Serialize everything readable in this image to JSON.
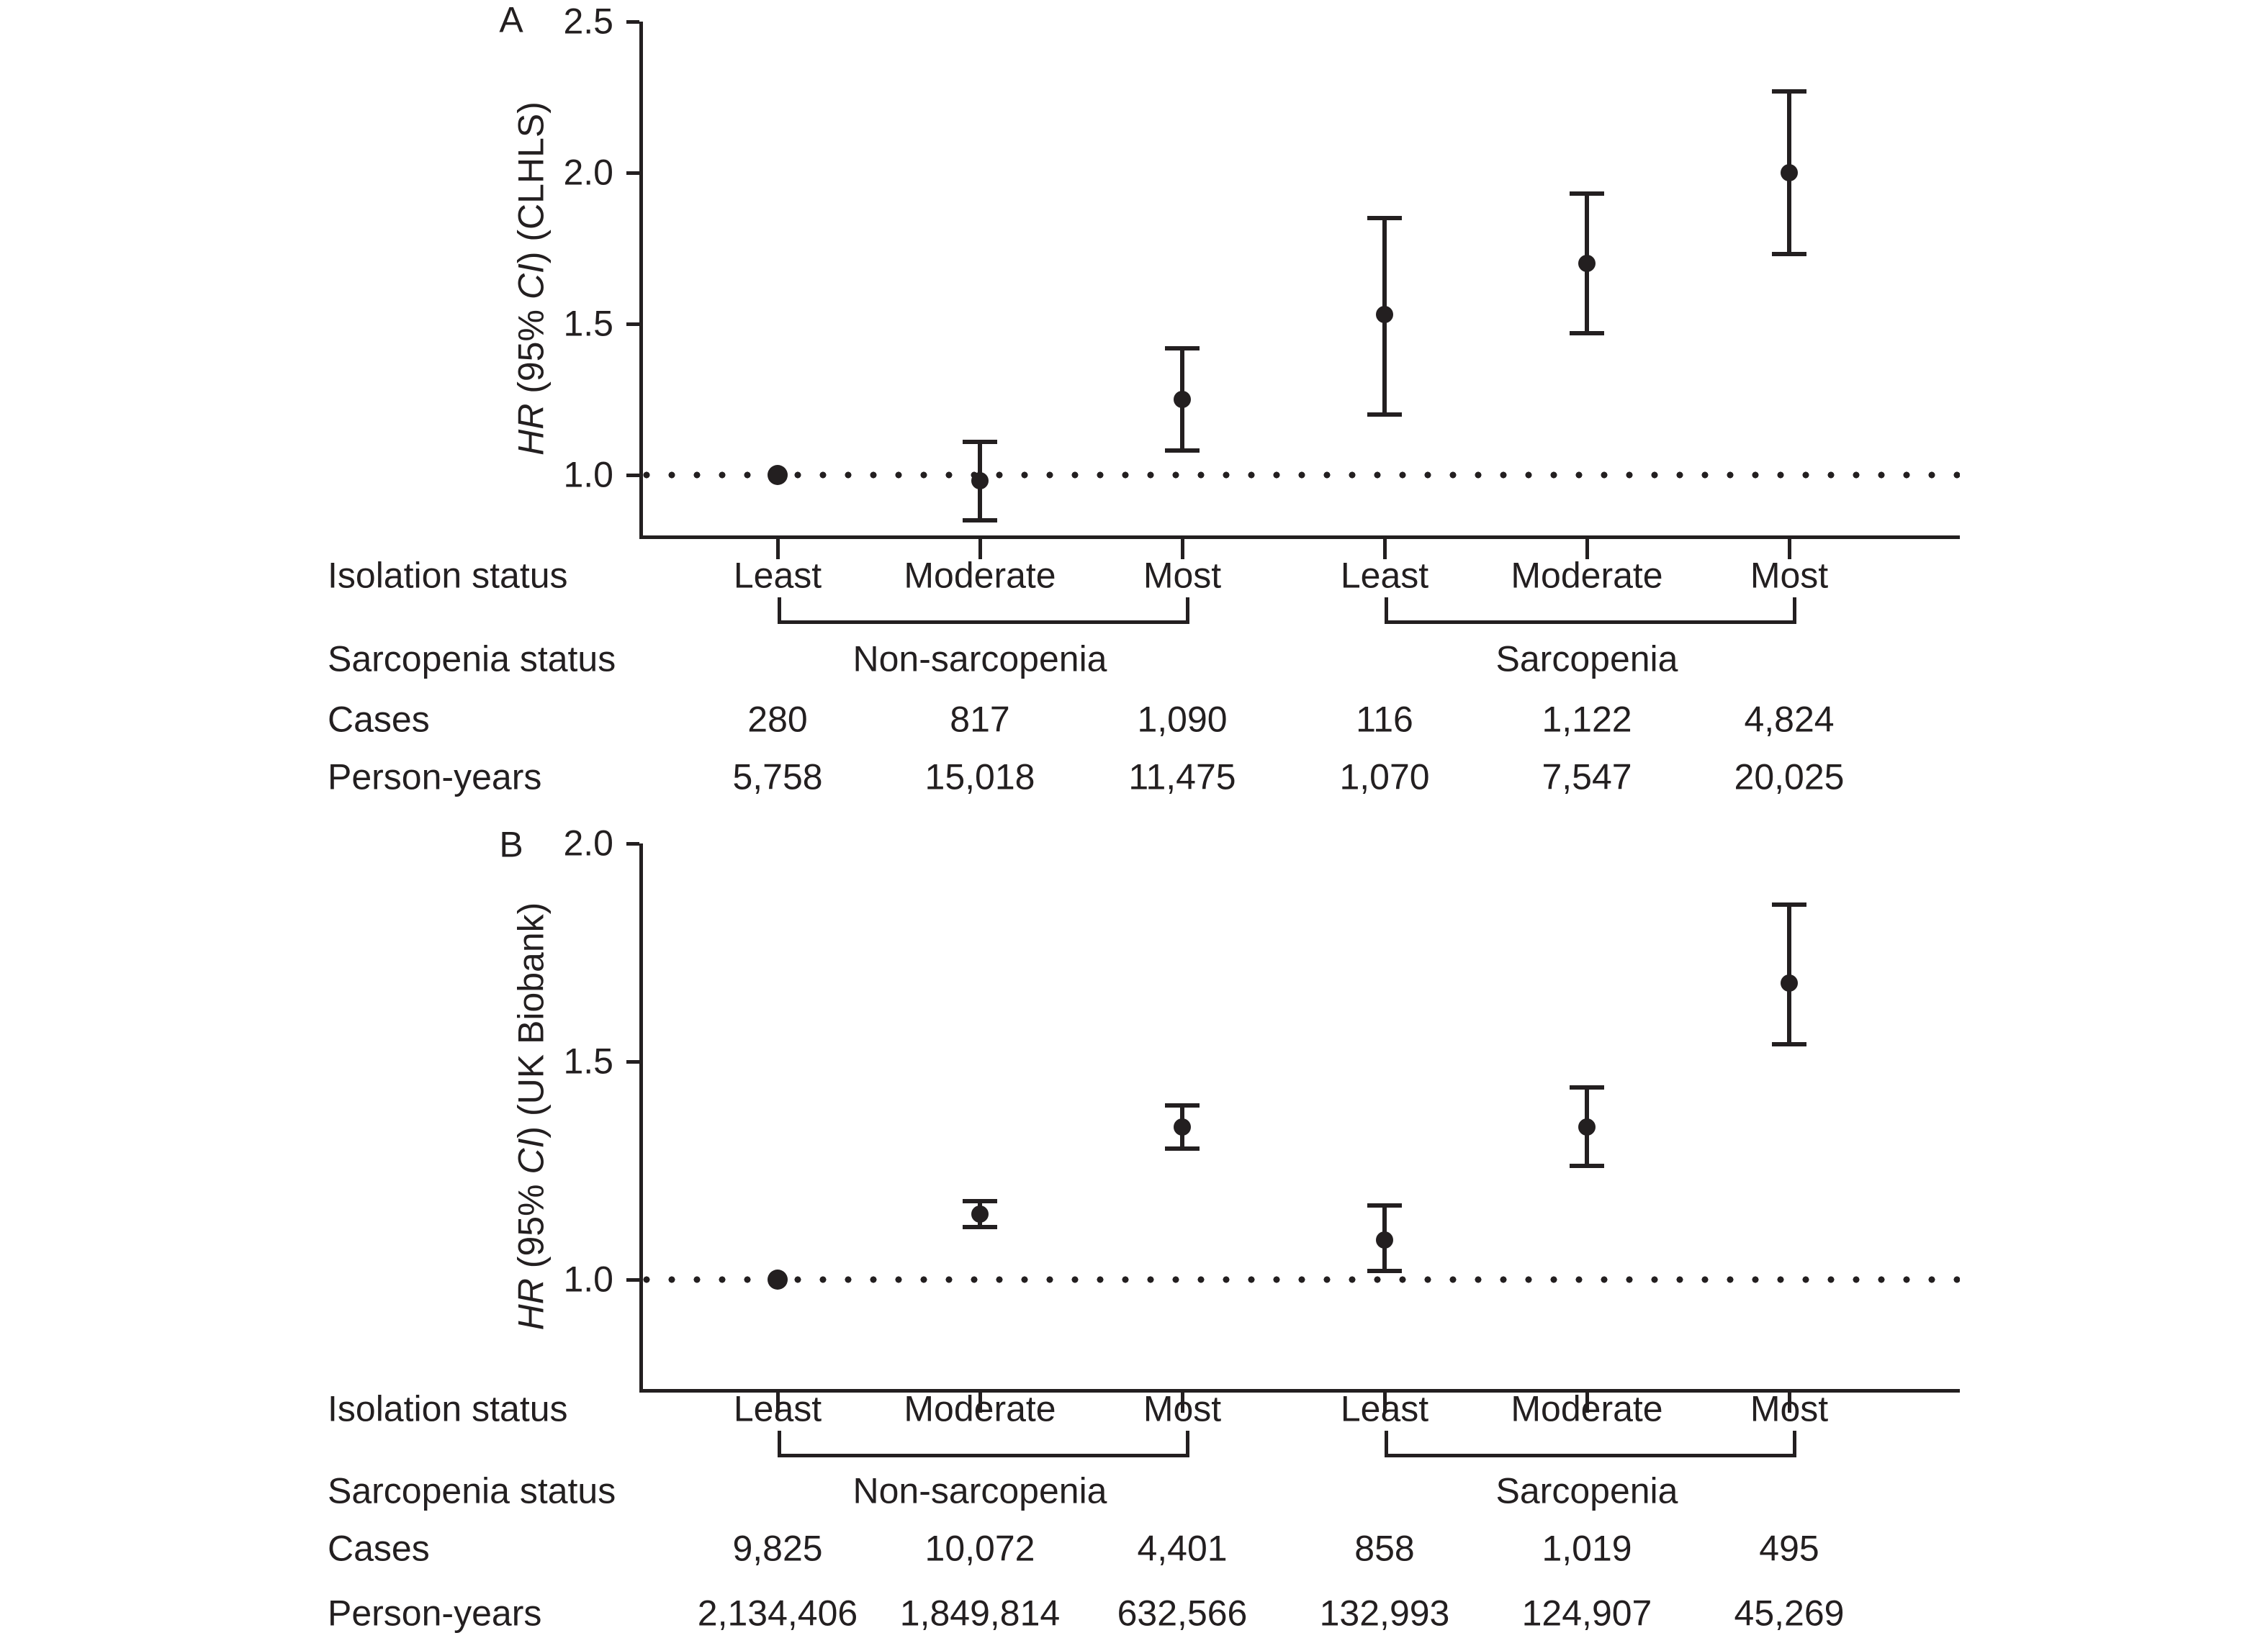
{
  "colors": {
    "ink": "#231f20",
    "background": "#ffffff"
  },
  "row_labels": {
    "isolation": "Isolation status",
    "sarcopenia": "Sarcopenia status",
    "cases": "Cases",
    "person_years": "Person-years"
  },
  "chart_data": [
    {
      "type": "scatter",
      "panel_label": "A",
      "ylabel": "HR (95% CI) (CLHLS)",
      "ylabel_parts": [
        {
          "text": "HR",
          "italic": true
        },
        {
          "text": " (95% ",
          "italic": false
        },
        {
          "text": "CI",
          "italic": true
        },
        {
          "text": ") (CLHLS)",
          "italic": false
        }
      ],
      "yticks": [
        2.5,
        2.0,
        1.5,
        1.0
      ],
      "ytick_labels": [
        "2.5",
        "2.0",
        "1.5",
        "1.0"
      ],
      "ylim": [
        0.8,
        2.5
      ],
      "reference_line": 1.0,
      "grid": false,
      "x_categories": [
        "Least",
        "Moderate",
        "Most",
        "Least",
        "Moderate",
        "Most"
      ],
      "groups": [
        {
          "label": "Non-sarcopenia",
          "from": 0,
          "to": 2
        },
        {
          "label": "Sarcopenia",
          "from": 3,
          "to": 5
        }
      ],
      "series": [
        {
          "isolation": "Least",
          "group": "Non-sarcopenia",
          "hr": 1.0,
          "ci_low": null,
          "ci_high": null,
          "reference": true
        },
        {
          "isolation": "Moderate",
          "group": "Non-sarcopenia",
          "hr": 0.98,
          "ci_low": 0.85,
          "ci_high": 1.11,
          "reference": false
        },
        {
          "isolation": "Most",
          "group": "Non-sarcopenia",
          "hr": 1.25,
          "ci_low": 1.08,
          "ci_high": 1.42,
          "reference": false
        },
        {
          "isolation": "Least",
          "group": "Sarcopenia",
          "hr": 1.53,
          "ci_low": 1.2,
          "ci_high": 1.85,
          "reference": false
        },
        {
          "isolation": "Moderate",
          "group": "Sarcopenia",
          "hr": 1.7,
          "ci_low": 1.47,
          "ci_high": 1.93,
          "reference": false
        },
        {
          "isolation": "Most",
          "group": "Sarcopenia",
          "hr": 2.0,
          "ci_low": 1.73,
          "ci_high": 2.27,
          "reference": false
        }
      ],
      "cases": [
        "280",
        "817",
        "1,090",
        "116",
        "1,122",
        "4,824"
      ],
      "person_years": [
        "5,758",
        "15,018",
        "11,475",
        "1,070",
        "7,547",
        "20,025"
      ]
    },
    {
      "type": "scatter",
      "panel_label": "B",
      "ylabel": "HR (95% CI) (UK Biobank)",
      "ylabel_parts": [
        {
          "text": "HR",
          "italic": true
        },
        {
          "text": " (95% ",
          "italic": false
        },
        {
          "text": "CI",
          "italic": true
        },
        {
          "text": ") (UK Biobank)",
          "italic": false
        }
      ],
      "yticks": [
        2.0,
        1.5,
        1.0
      ],
      "ytick_labels": [
        "2.0",
        "1.5",
        "1.0"
      ],
      "ylim": [
        0.75,
        2.0
      ],
      "reference_line": 1.0,
      "grid": false,
      "x_categories": [
        "Least",
        "Moderate",
        "Most",
        "Least",
        "Moderate",
        "Most"
      ],
      "groups": [
        {
          "label": "Non-sarcopenia",
          "from": 0,
          "to": 2
        },
        {
          "label": "Sarcopenia",
          "from": 3,
          "to": 5
        }
      ],
      "series": [
        {
          "isolation": "Least",
          "group": "Non-sarcopenia",
          "hr": 1.0,
          "ci_low": null,
          "ci_high": null,
          "reference": true
        },
        {
          "isolation": "Moderate",
          "group": "Non-sarcopenia",
          "hr": 1.15,
          "ci_low": 1.12,
          "ci_high": 1.18,
          "reference": false
        },
        {
          "isolation": "Most",
          "group": "Non-sarcopenia",
          "hr": 1.35,
          "ci_low": 1.3,
          "ci_high": 1.4,
          "reference": false
        },
        {
          "isolation": "Least",
          "group": "Sarcopenia",
          "hr": 1.09,
          "ci_low": 1.02,
          "ci_high": 1.17,
          "reference": false
        },
        {
          "isolation": "Moderate",
          "group": "Sarcopenia",
          "hr": 1.35,
          "ci_low": 1.26,
          "ci_high": 1.44,
          "reference": false
        },
        {
          "isolation": "Most",
          "group": "Sarcopenia",
          "hr": 1.68,
          "ci_low": 1.54,
          "ci_high": 1.86,
          "reference": false
        }
      ],
      "cases": [
        "9,825",
        "10,072",
        "4,401",
        "858",
        "1,019",
        "495"
      ],
      "person_years": [
        "2,134,406",
        "1,849,814",
        "632,566",
        "132,993",
        "124,907",
        "45,269"
      ]
    }
  ]
}
